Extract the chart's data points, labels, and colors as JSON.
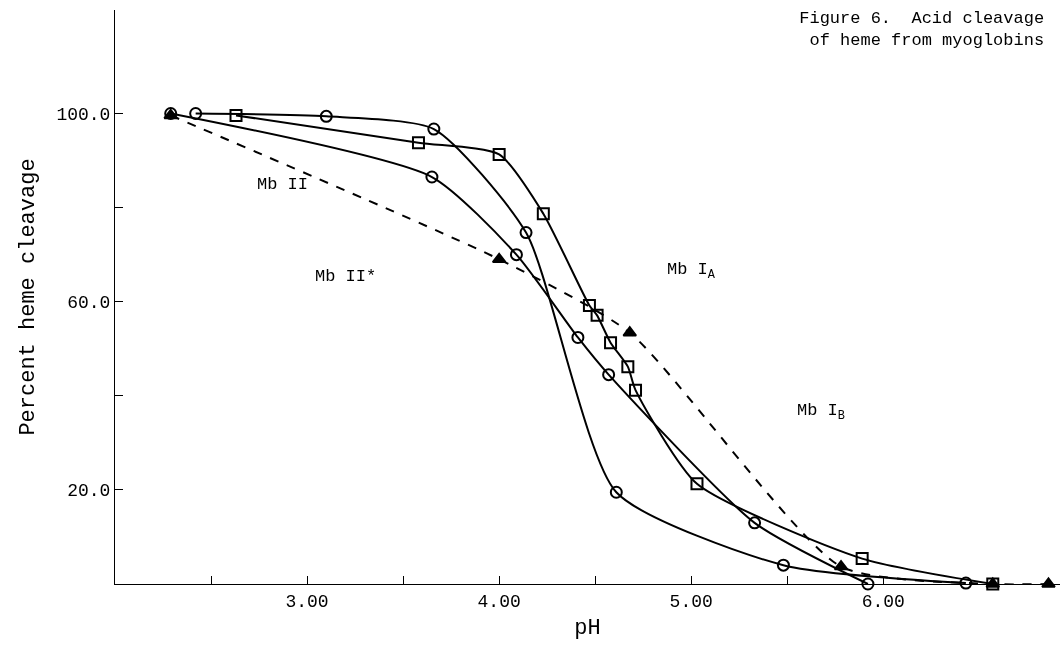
{
  "chart_data": {
    "type": "line",
    "title": "Figure 6.  Acid cleavage of heme from myoglobins",
    "xlabel": "pH",
    "ylabel": "Percent heme cleavage",
    "xlim": [
      2.0,
      6.92
    ],
    "ylim": [
      0,
      122
    ],
    "xticks": [
      {
        "value": 2.5,
        "label": null
      },
      {
        "value": 3,
        "label": "3.00"
      },
      {
        "value": 3.5,
        "label": null
      },
      {
        "value": 4,
        "label": "4.00"
      },
      {
        "value": 4.5,
        "label": null
      },
      {
        "value": 5,
        "label": "5.00"
      },
      {
        "value": 5.5,
        "label": null
      },
      {
        "value": 6,
        "label": "6.00"
      }
    ],
    "yticks": [
      {
        "value": 20,
        "label": "20.0"
      },
      {
        "value": 40,
        "label": null
      },
      {
        "value": 60,
        "label": "60.0"
      },
      {
        "value": 80,
        "label": null
      },
      {
        "value": 100,
        "label": "100.0"
      }
    ],
    "series": [
      {
        "color": "#000000",
        "marker": "circle",
        "line_style": "solid",
        "x": [
          2.42,
          3.1,
          3.66,
          4.14,
          4.61,
          5.48,
          6.43
        ],
        "values": [
          100,
          99.4,
          96.7,
          74.7,
          19.5,
          4,
          0.2
        ]
      },
      {
        "color": "#000000",
        "marker": "square",
        "line_style": "solid",
        "x": [
          2.63,
          3.58,
          4.0,
          4.23,
          4.47,
          4.51,
          4.58,
          4.67,
          4.71,
          5.03,
          5.89,
          6.57
        ],
        "values": [
          99.6,
          93.8,
          91.3,
          78.7,
          59.2,
          57.1,
          51.3,
          46.2,
          41.2,
          21.3,
          5.4,
          0
        ]
      },
      {
        "color": "#000000",
        "marker": "triangle",
        "line_style": "dashed",
        "x": [
          2.29,
          4.0,
          4.68,
          5.78,
          6.57,
          6.86
        ],
        "values": [
          99.6,
          69,
          53.4,
          3.7,
          0,
          0
        ]
      },
      {
        "color": "#000000",
        "marker": "circle",
        "line_style": "solid",
        "x": [
          2.29,
          3.65,
          4.09,
          4.41,
          4.57,
          5.33,
          5.92
        ],
        "values": [
          100,
          86.5,
          70,
          52.4,
          44.5,
          13,
          0
        ]
      }
    ],
    "annotations": [
      "Mb II",
      "Mb II*",
      "Mb I$_{A}$",
      "Mb I$_{B}$"
    ]
  }
}
